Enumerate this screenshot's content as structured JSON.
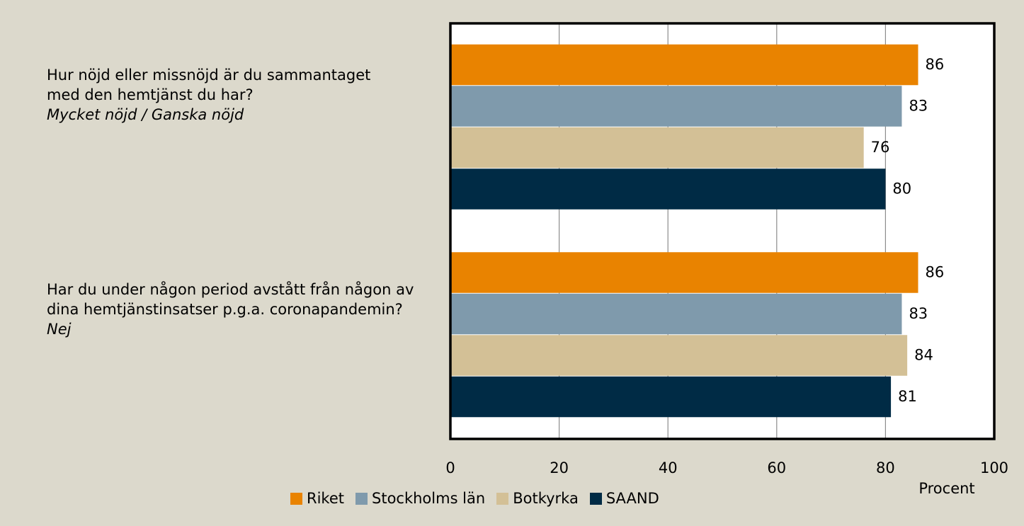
{
  "chart_data": {
    "type": "barh",
    "categories": [
      "Hur nöjd eller missnöjd är du sammantaget med den hemtjänst du har?",
      "Har du under någon period avstått från någon av dina hemtjänstinsatser p.g.a. coronapandemin?"
    ],
    "category_answers": [
      "Mycket nöjd / Ganska nöjd",
      "Nej"
    ],
    "series": [
      {
        "name": "Riket",
        "color": "#e98300",
        "values": [
          86,
          86
        ]
      },
      {
        "name": "Stockholms län",
        "color": "#7f9aac",
        "values": [
          83,
          83
        ]
      },
      {
        "name": "Botkyrka",
        "color": "#d3c096",
        "values": [
          76,
          84
        ]
      },
      {
        "name": "SAAND",
        "color": "#002b45",
        "values": [
          80,
          81
        ]
      }
    ],
    "xlim": [
      0,
      100
    ],
    "xticks": [
      0,
      20,
      40,
      60,
      80,
      100
    ],
    "xlabel": "Procent",
    "grid": true,
    "legend": "bottom"
  }
}
